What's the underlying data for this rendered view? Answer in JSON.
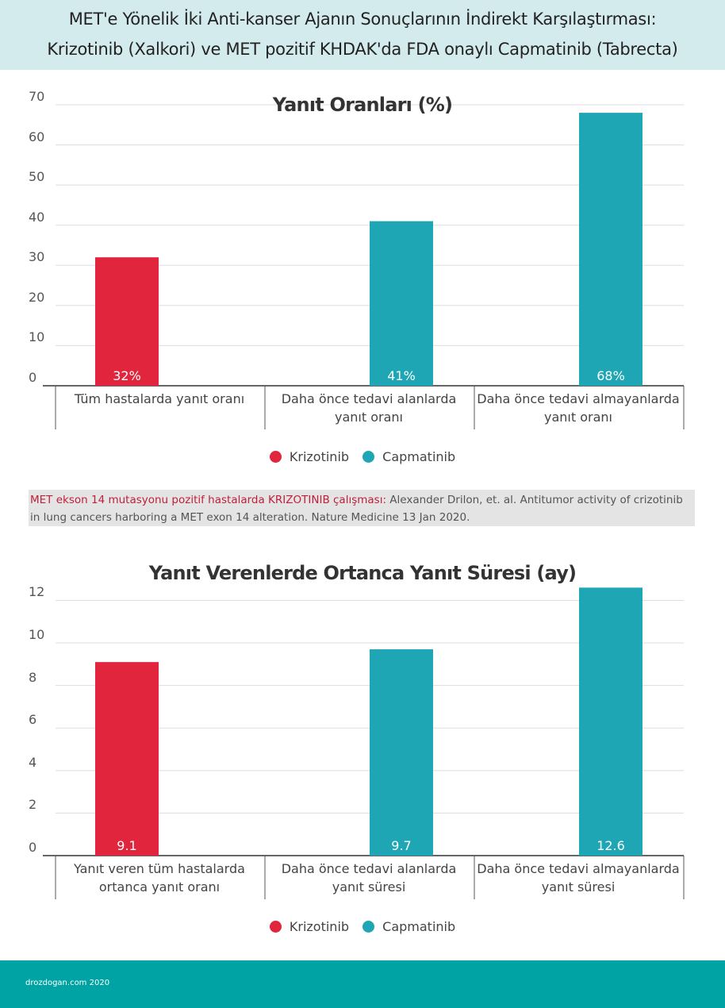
{
  "header": {
    "line1": "MET'e Yönelik İki Anti-kanser Ajanın Sonuçlarının İndirekt Karşılaştırması:",
    "line2": "Krizotinib (Xalkori) ve MET pozitif KHDAK'da FDA onaylı Capmatinib (Tabrecta)"
  },
  "colors": {
    "krizotinib": "#e0253d",
    "capmatinib": "#1fa6b4",
    "header_bg": "#d4ebee",
    "footer_bg": "#00a3a3"
  },
  "chart_data": [
    {
      "type": "bar",
      "title": "Yanıt Oranları (%)",
      "categories": [
        "Tüm hastalarda yanıt oranı",
        "Daha önce tedavi alanlarda yanıt oranı",
        "Daha önce tedavi almayanlarda yanıt oranı"
      ],
      "values": [
        32,
        41,
        68
      ],
      "value_labels": [
        "32%",
        "41%",
        "68%"
      ],
      "bar_series": [
        "Krizotinib",
        "Capmatinib",
        "Capmatinib"
      ],
      "ylim": [
        0,
        70
      ],
      "yticks": [
        "0",
        "10",
        "20",
        "30",
        "40",
        "50",
        "60",
        "70"
      ],
      "grid": true,
      "legend": {
        "placement": "bottom",
        "items": [
          "Krizotinib",
          "Capmatinib"
        ]
      }
    },
    {
      "type": "bar",
      "title": "Yanıt Verenlerde Ortanca Yanıt Süresi (ay)",
      "categories": [
        "Yanıt veren tüm hastalarda ortanca yanıt oranı",
        "Daha önce tedavi alanlarda yanıt süresi",
        "Daha önce tedavi almayanlarda yanıt süresi"
      ],
      "values": [
        9.1,
        9.7,
        12.6
      ],
      "value_labels": [
        "9.1",
        "9.7",
        "12.6"
      ],
      "bar_series": [
        "Krizotinib",
        "Capmatinib",
        "Capmatinib"
      ],
      "ylim": [
        0,
        12.8
      ],
      "yticks": [
        "0",
        "2",
        "4",
        "6",
        "8",
        "10",
        "12"
      ],
      "grid": true,
      "legend": {
        "placement": "bottom",
        "items": [
          "Krizotinib",
          "Capmatinib"
        ]
      }
    }
  ],
  "note": {
    "lead": "MET ekson 14 mutasyonu pozitif hastalarda KRIZOTINIB çalışması:",
    "text": " Alexander Drilon, et. al. Antitumor activity of crizotinib in lung cancers harboring a MET exon 14 alteration. Nature Medicine 13 Jan 2020."
  },
  "footer": {
    "credit": "drozdogan.com 2020"
  }
}
